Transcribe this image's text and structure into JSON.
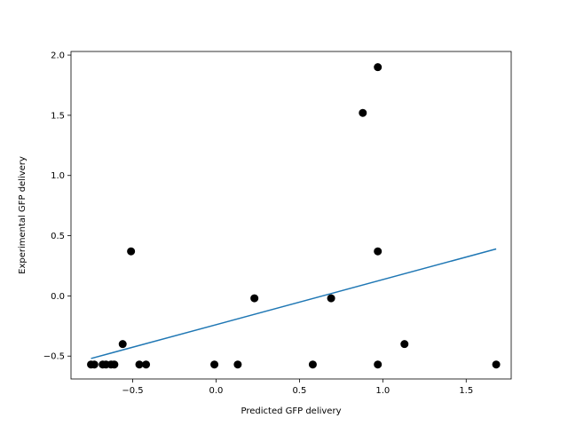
{
  "chart_data": {
    "type": "scatter",
    "title": "",
    "xlabel": "Predicted GFP delivery",
    "ylabel": "Experimental GFP delivery",
    "xlim": [
      -0.87,
      1.77
    ],
    "ylim": [
      -0.69,
      2.03
    ],
    "x_ticks": [
      -0.5,
      0.0,
      0.5,
      1.0,
      1.5
    ],
    "x_tick_labels": [
      "−0.5",
      "0.0",
      "0.5",
      "1.0",
      "1.5"
    ],
    "y_ticks": [
      -0.5,
      0.0,
      0.5,
      1.0,
      1.5,
      2.0
    ],
    "y_tick_labels": [
      "−0.5",
      "0.0",
      "0.5",
      "1.0",
      "1.5",
      "2.0"
    ],
    "grid": false,
    "series": [
      {
        "kind": "scatter",
        "color": "#000000",
        "points": [
          {
            "x": -0.75,
            "y": -0.57
          },
          {
            "x": -0.73,
            "y": -0.57
          },
          {
            "x": -0.68,
            "y": -0.57
          },
          {
            "x": -0.66,
            "y": -0.57
          },
          {
            "x": -0.63,
            "y": -0.57
          },
          {
            "x": -0.61,
            "y": -0.57
          },
          {
            "x": -0.56,
            "y": -0.4
          },
          {
            "x": -0.51,
            "y": 0.37
          },
          {
            "x": -0.46,
            "y": -0.57
          },
          {
            "x": -0.42,
            "y": -0.57
          },
          {
            "x": -0.01,
            "y": -0.57
          },
          {
            "x": 0.13,
            "y": -0.57
          },
          {
            "x": 0.23,
            "y": -0.02
          },
          {
            "x": 0.58,
            "y": -0.57
          },
          {
            "x": 0.69,
            "y": -0.02
          },
          {
            "x": 0.88,
            "y": 1.52
          },
          {
            "x": 0.97,
            "y": 1.9
          },
          {
            "x": 0.97,
            "y": 0.37
          },
          {
            "x": 0.97,
            "y": -0.57
          },
          {
            "x": 1.13,
            "y": -0.4
          },
          {
            "x": 1.68,
            "y": -0.57
          }
        ]
      },
      {
        "kind": "line",
        "color": "#1f77b4",
        "points": [
          {
            "x": -0.75,
            "y": -0.52
          },
          {
            "x": 1.68,
            "y": 0.39
          }
        ]
      }
    ]
  }
}
